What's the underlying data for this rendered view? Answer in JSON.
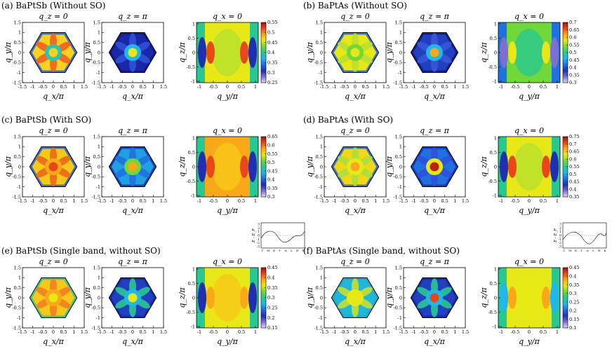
{
  "figure": {
    "colormap": [
      "#e0dcf0",
      "#7c6fd0",
      "#1f2fb0",
      "#2070e0",
      "#20b8e8",
      "#28c890",
      "#70d838",
      "#e8e818",
      "#f8a818",
      "#e84818",
      "#a01010"
    ],
    "panels": [
      {
        "id": "a",
        "label": "(a) BaPtSb (Without SO)",
        "colorbar": {
          "min": 0.25,
          "max": 0.55,
          "ticks": [
            "0.55",
            "0.5",
            "0.45",
            "0.4",
            "0.35",
            "0.3",
            "0.25"
          ]
        },
        "maps": [
          {
            "title": "q_z = 0",
            "type": "hex",
            "xlabel": "q_x/π",
            "ylabel": "q_y/π"
          },
          {
            "title": "q_z = π",
            "type": "hex",
            "xlabel": "q_x/π",
            "ylabel": "q_y/π"
          },
          {
            "title": "q_x = 0",
            "type": "rect",
            "xlabel": "q_y/π",
            "ylabel": "q_z/π"
          }
        ]
      },
      {
        "id": "b",
        "label": "(b) BaPtAs (Without SO)",
        "colorbar": {
          "min": 0.3,
          "max": 0.7,
          "ticks": [
            "0.7",
            "0.65",
            "0.6",
            "0.55",
            "0.5",
            "0.45",
            "0.4",
            "0.35",
            "0.3"
          ]
        },
        "maps": [
          {
            "title": "q_z = 0",
            "type": "hex",
            "xlabel": "q_x/π",
            "ylabel": "q_y/π"
          },
          {
            "title": "q_z = π",
            "type": "hex",
            "xlabel": "q_x/π",
            "ylabel": "q_y/π"
          },
          {
            "title": "q_x = 0",
            "type": "rect",
            "xlabel": "q_y/π",
            "ylabel": "q_z/π"
          }
        ]
      },
      {
        "id": "c",
        "label": "(c) BaPtSb (With SO)",
        "colorbar": {
          "min": 0.3,
          "max": 0.65,
          "ticks": [
            "0.65",
            "0.6",
            "0.55",
            "0.5",
            "0.45",
            "0.4",
            "0.35",
            "0.3"
          ]
        },
        "maps": [
          {
            "title": "q_z = 0",
            "type": "hex",
            "xlabel": "q_x/π",
            "ylabel": "q_y/π"
          },
          {
            "title": "q_z = π",
            "type": "hex",
            "xlabel": "q_x/π",
            "ylabel": "q_y/π"
          },
          {
            "title": "q_x = 0",
            "type": "rect",
            "xlabel": "q_y/π",
            "ylabel": "q_z/π"
          }
        ]
      },
      {
        "id": "d",
        "label": "(d) BaPtAs (With SO)",
        "colorbar": {
          "min": 0.35,
          "max": 0.75,
          "ticks": [
            "0.75",
            "0.7",
            "0.65",
            "0.6",
            "0.55",
            "0.5",
            "0.45",
            "0.4",
            "0.35"
          ]
        },
        "maps": [
          {
            "title": "q_z = 0",
            "type": "hex",
            "xlabel": "q_x/π",
            "ylabel": "q_y/π"
          },
          {
            "title": "q_z = π",
            "type": "hex",
            "xlabel": "q_x/π",
            "ylabel": "q_y/π"
          },
          {
            "title": "q_x = 0",
            "type": "rect",
            "xlabel": "q_y/π",
            "ylabel": "q_z/π"
          }
        ]
      },
      {
        "id": "e",
        "label": "(e) BaPtSb (Single band, without SO)",
        "colorbar": {
          "min": 0.15,
          "max": 0.45,
          "ticks": [
            "0.45",
            "0.4",
            "0.35",
            "0.3",
            "0.25",
            "0.2",
            "0.15"
          ]
        },
        "maps": [
          {
            "title": "q_z = 0",
            "type": "hex",
            "xlabel": "q_x/π",
            "ylabel": "q_y/π"
          },
          {
            "title": "q_z = π",
            "type": "hex",
            "xlabel": "q_x/π",
            "ylabel": "q_y/π"
          },
          {
            "title": "q_x = 0",
            "type": "rect",
            "xlabel": "q_y/π",
            "ylabel": "q_z/π"
          }
        ],
        "inset": {
          "ylabel": "E - E_F",
          "yticks": [
            "3",
            "2",
            "1",
            "0",
            "-1",
            "-2",
            "-3"
          ],
          "xticks": [
            "Γ",
            "M",
            "K",
            "Γ",
            "A",
            "L",
            "H",
            "K"
          ]
        }
      },
      {
        "id": "f",
        "label": "(f) BaPtAs (Single band, without SO)",
        "colorbar": {
          "min": 0.1,
          "max": 0.45,
          "ticks": [
            "0.45",
            "0.4",
            "0.35",
            "0.3",
            "0.25",
            "0.2",
            "0.15",
            "0.1"
          ]
        },
        "maps": [
          {
            "title": "q_z = 0",
            "type": "hex",
            "xlabel": "q_x/π",
            "ylabel": "q_y/π"
          },
          {
            "title": "q_z = π",
            "type": "hex",
            "xlabel": "q_x/π",
            "ylabel": "q_y/π"
          },
          {
            "title": "q_x = 0",
            "type": "rect",
            "xlabel": "q_y/π",
            "ylabel": "q_z/π"
          }
        ],
        "inset": {
          "ylabel": "E - E_F",
          "yticks": [
            "3",
            "2",
            "1",
            "0",
            "-1",
            "-2",
            "-3"
          ],
          "xticks": [
            "Γ",
            "M",
            "K",
            "Γ",
            "A",
            "L",
            "H",
            "K"
          ]
        }
      }
    ]
  },
  "chart_data": {
    "type": "heatmap",
    "hex_axis_ticks": [
      "-1.5",
      "-1",
      "-0.5",
      "0",
      "0.5",
      "1",
      "1.5"
    ],
    "rect_x_ticks": [
      "-1",
      "-0.5",
      "0",
      "0.5",
      "1"
    ],
    "rect_y_ticks": [
      "1",
      "0.5",
      "0",
      "-0.5",
      "-1"
    ],
    "xlim": [
      -1.5,
      1.5
    ],
    "ylim": [
      -1.5,
      1.5
    ],
    "rect_xlim": [
      -1.1,
      1.1
    ],
    "rect_ylim": [
      -1.05,
      1.05
    ]
  }
}
